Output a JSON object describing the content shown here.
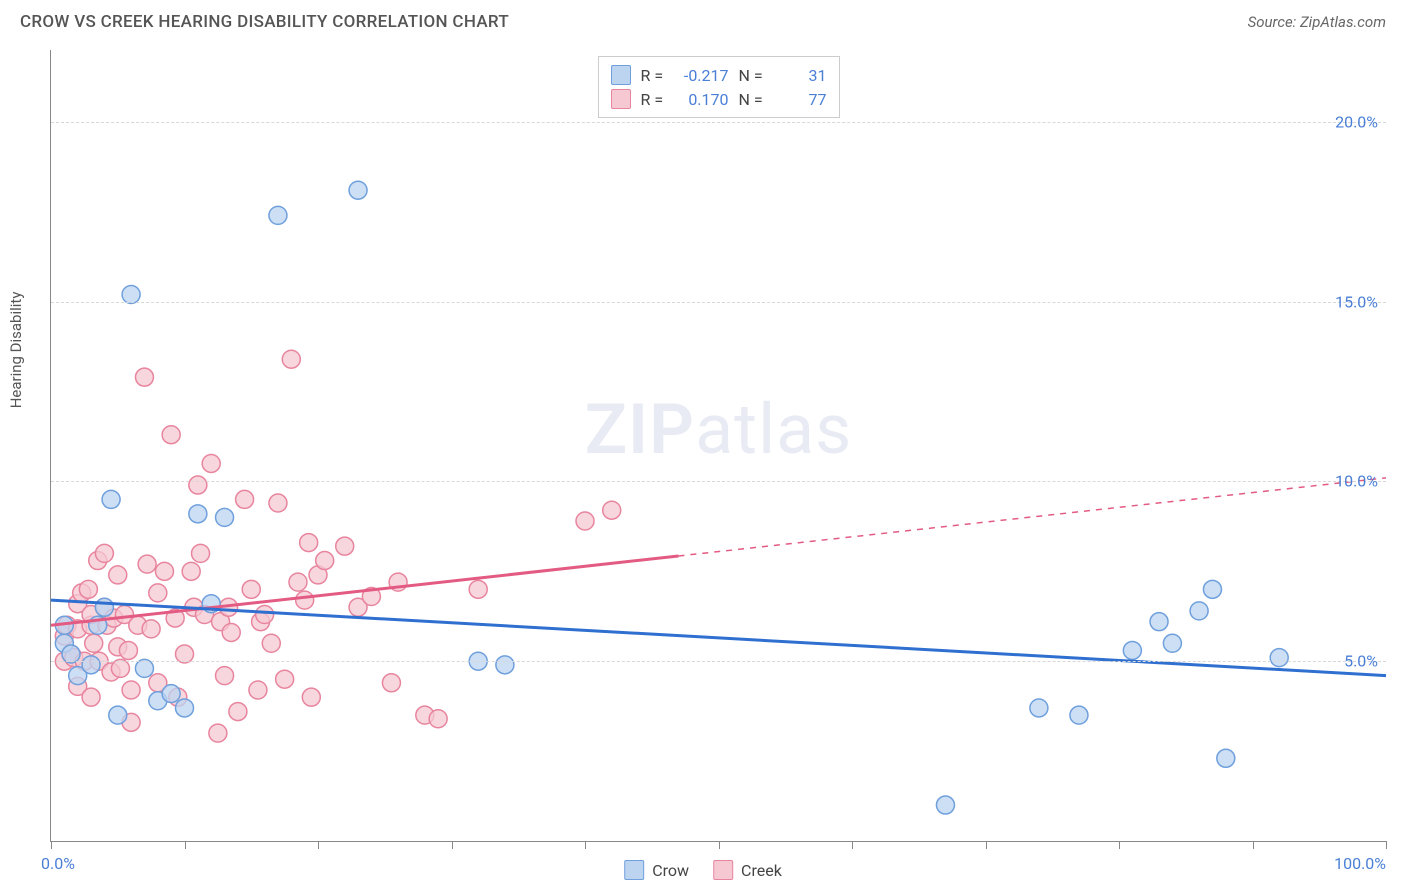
{
  "header": {
    "title": "CROW VS CREEK HEARING DISABILITY CORRELATION CHART",
    "source": "Source: ZipAtlas.com"
  },
  "watermark": {
    "part1": "ZIP",
    "part2": "atlas"
  },
  "chart": {
    "type": "scatter",
    "y_axis_title": "Hearing Disability",
    "xlim": [
      0,
      100
    ],
    "ylim": [
      0,
      22
    ],
    "xtick_positions": [
      0,
      10,
      20,
      30,
      40,
      50,
      60,
      70,
      80,
      90,
      100
    ],
    "x_axis_label_left": "0.0%",
    "x_axis_label_right": "100.0%",
    "ygrid": [
      {
        "value": 5,
        "label": "5.0%"
      },
      {
        "value": 10,
        "label": "10.0%"
      },
      {
        "value": 15,
        "label": "15.0%"
      },
      {
        "value": 20,
        "label": "20.0%"
      }
    ],
    "background_color": "#ffffff",
    "grid_color": "#d8d8d8",
    "axis_color": "#888888",
    "series": {
      "crow": {
        "label": "Crow",
        "marker_fill": "#bcd4f0",
        "marker_stroke": "#6fa0dd",
        "marker_radius": 9,
        "line_color": "#2f6fd0",
        "line_width": 3,
        "r_value": "-0.217",
        "n_value": "31",
        "regression": {
          "x1": 0,
          "y1": 6.7,
          "x2": 100,
          "y2": 4.6,
          "solid_end_x": 100
        },
        "points": [
          [
            1,
            5.5
          ],
          [
            1,
            6.0
          ],
          [
            1.5,
            5.2
          ],
          [
            2,
            4.6
          ],
          [
            3,
            4.9
          ],
          [
            3.5,
            6.0
          ],
          [
            4,
            6.5
          ],
          [
            4.5,
            9.5
          ],
          [
            5,
            3.5
          ],
          [
            6,
            15.2
          ],
          [
            7,
            4.8
          ],
          [
            8,
            3.9
          ],
          [
            9,
            4.1
          ],
          [
            10,
            3.7
          ],
          [
            11,
            9.1
          ],
          [
            12,
            6.6
          ],
          [
            13,
            9.0
          ],
          [
            17,
            17.4
          ],
          [
            23,
            18.1
          ],
          [
            32,
            5.0
          ],
          [
            34,
            4.9
          ],
          [
            67,
            1.0
          ],
          [
            74,
            3.7
          ],
          [
            77,
            3.5
          ],
          [
            81,
            5.3
          ],
          [
            83,
            6.1
          ],
          [
            84,
            5.5
          ],
          [
            86,
            6.4
          ],
          [
            87,
            7.0
          ],
          [
            88,
            2.3
          ],
          [
            92,
            5.1
          ]
        ]
      },
      "creek": {
        "label": "Creek",
        "marker_fill": "#f6c8d2",
        "marker_stroke": "#e8859e",
        "marker_radius": 9,
        "line_color": "#e35b82",
        "line_width": 3,
        "r_value": "0.170",
        "n_value": "77",
        "regression": {
          "x1": 0,
          "y1": 6.0,
          "x2": 100,
          "y2": 10.1,
          "solid_end_x": 47
        },
        "points": [
          [
            1,
            5.0
          ],
          [
            1,
            5.7
          ],
          [
            1.2,
            6.0
          ],
          [
            1.5,
            5.2
          ],
          [
            1.7,
            5.1
          ],
          [
            2,
            5.9
          ],
          [
            2,
            6.6
          ],
          [
            2,
            4.3
          ],
          [
            2.3,
            6.9
          ],
          [
            2.5,
            5.0
          ],
          [
            2.8,
            7.0
          ],
          [
            3,
            6.0
          ],
          [
            3,
            6.3
          ],
          [
            3,
            4.0
          ],
          [
            3.2,
            5.5
          ],
          [
            3.5,
            7.8
          ],
          [
            3.6,
            5.0
          ],
          [
            4,
            6.5
          ],
          [
            4,
            8.0
          ],
          [
            4.2,
            6.0
          ],
          [
            4.5,
            4.7
          ],
          [
            4.7,
            6.2
          ],
          [
            5,
            5.4
          ],
          [
            5,
            7.4
          ],
          [
            5.2,
            4.8
          ],
          [
            5.5,
            6.3
          ],
          [
            5.8,
            5.3
          ],
          [
            6,
            3.3
          ],
          [
            6,
            4.2
          ],
          [
            6.5,
            6.0
          ],
          [
            7,
            12.9
          ],
          [
            7.2,
            7.7
          ],
          [
            7.5,
            5.9
          ],
          [
            8,
            6.9
          ],
          [
            8,
            4.4
          ],
          [
            8.5,
            7.5
          ],
          [
            9,
            11.3
          ],
          [
            9.3,
            6.2
          ],
          [
            9.5,
            4.0
          ],
          [
            10,
            5.2
          ],
          [
            10.5,
            7.5
          ],
          [
            10.7,
            6.5
          ],
          [
            11,
            9.9
          ],
          [
            11.2,
            8.0
          ],
          [
            11.5,
            6.3
          ],
          [
            12,
            10.5
          ],
          [
            12.5,
            3.0
          ],
          [
            12.7,
            6.1
          ],
          [
            13,
            4.6
          ],
          [
            13.3,
            6.5
          ],
          [
            13.5,
            5.8
          ],
          [
            14,
            3.6
          ],
          [
            14.5,
            9.5
          ],
          [
            15,
            7.0
          ],
          [
            15.5,
            4.2
          ],
          [
            15.7,
            6.1
          ],
          [
            16,
            6.3
          ],
          [
            16.5,
            5.5
          ],
          [
            17,
            9.4
          ],
          [
            17.5,
            4.5
          ],
          [
            18,
            13.4
          ],
          [
            18.5,
            7.2
          ],
          [
            19,
            6.7
          ],
          [
            19.3,
            8.3
          ],
          [
            19.5,
            4.0
          ],
          [
            20,
            7.4
          ],
          [
            20.5,
            7.8
          ],
          [
            22,
            8.2
          ],
          [
            23,
            6.5
          ],
          [
            24,
            6.8
          ],
          [
            25.5,
            4.4
          ],
          [
            26,
            7.2
          ],
          [
            28,
            3.5
          ],
          [
            29,
            3.4
          ],
          [
            32,
            7.0
          ],
          [
            40,
            8.9
          ],
          [
            42,
            9.2
          ]
        ]
      }
    },
    "legend_top": {
      "r_label": "R =",
      "n_label": "N ="
    }
  }
}
